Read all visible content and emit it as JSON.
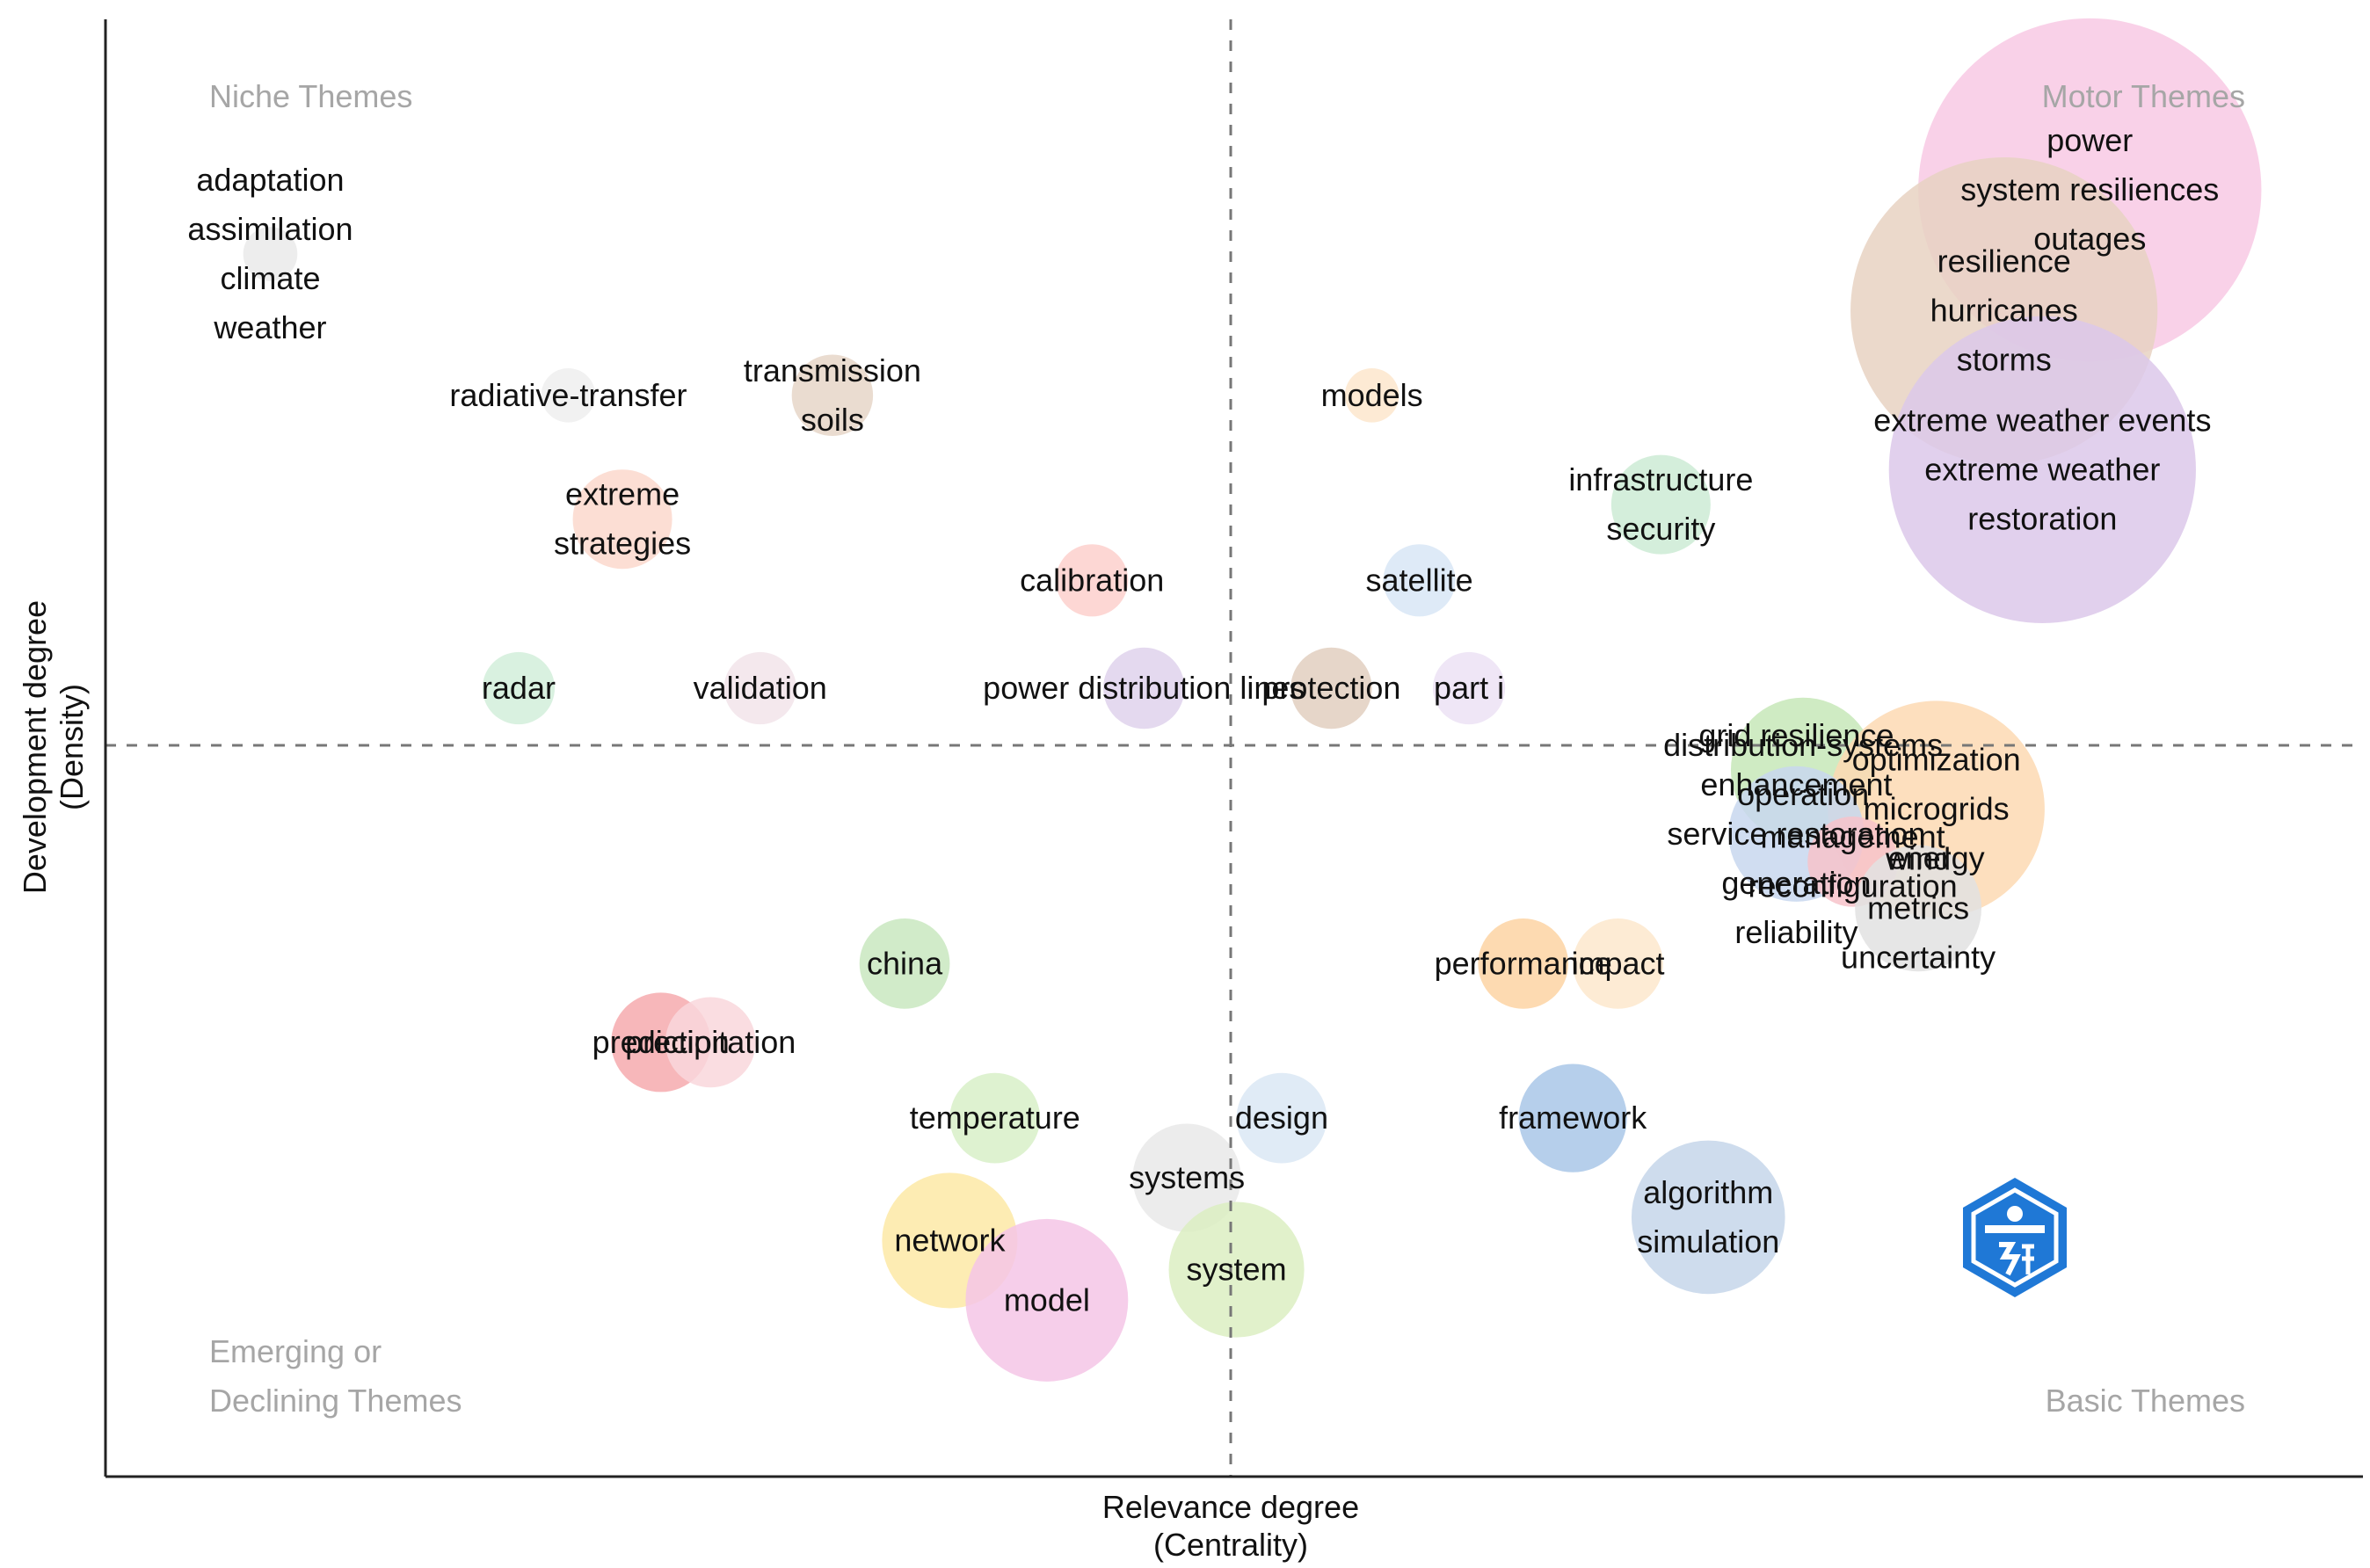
{
  "chart_data": {
    "type": "scatter",
    "title": "",
    "xlabel": [
      "Relevance degree",
      "(Centrality)"
    ],
    "ylabel": [
      "Development degree",
      "(Density)"
    ],
    "xlim": [
      0,
      1
    ],
    "ylim": [
      0,
      1
    ],
    "grid": false,
    "quadrants": {
      "top_left": [
        "Niche Themes"
      ],
      "top_right": [
        "Motor Themes"
      ],
      "bottom_left": [
        "Emerging or",
        "Declining Themes"
      ],
      "bottom_right": [
        "Basic Themes"
      ]
    },
    "clusters": [
      {
        "labels": [
          "power",
          "system resiliences",
          "outages"
        ],
        "x": 0.879,
        "y": 0.883,
        "size": 0.076,
        "color": "#f8c9e4"
      },
      {
        "labels": [
          "resilience",
          "hurricanes",
          "storms"
        ],
        "x": 0.841,
        "y": 0.8,
        "size": 0.068,
        "color": "#e8d2c2"
      },
      {
        "labels": [
          "extreme weather events",
          "extreme weather",
          "restoration"
        ],
        "x": 0.858,
        "y": 0.691,
        "size": 0.068,
        "color": "#dcc8ea"
      },
      {
        "labels": [
          "adaptation",
          "assimilation",
          "climate",
          "weather"
        ],
        "x": 0.073,
        "y": 0.839,
        "size": 0.012,
        "color": "#eaeaea"
      },
      {
        "labels": [
          "radiative-transfer"
        ],
        "x": 0.205,
        "y": 0.742,
        "size": 0.012,
        "color": "#efefef"
      },
      {
        "labels": [
          "transmission",
          "soils"
        ],
        "x": 0.322,
        "y": 0.742,
        "size": 0.018,
        "color": "#e6d6c8"
      },
      {
        "labels": [
          "models"
        ],
        "x": 0.561,
        "y": 0.742,
        "size": 0.012,
        "color": "#fde6cc"
      },
      {
        "labels": [
          "infrastructure",
          "security"
        ],
        "x": 0.689,
        "y": 0.667,
        "size": 0.022,
        "color": "#cdebd5"
      },
      {
        "labels": [
          "extreme",
          "strategies"
        ],
        "x": 0.229,
        "y": 0.657,
        "size": 0.022,
        "color": "#fcd8cc"
      },
      {
        "labels": [
          "calibration"
        ],
        "x": 0.437,
        "y": 0.615,
        "size": 0.016,
        "color": "#fdd0cc"
      },
      {
        "labels": [
          "satellite"
        ],
        "x": 0.582,
        "y": 0.615,
        "size": 0.016,
        "color": "#d8e6f6"
      },
      {
        "labels": [
          "radar"
        ],
        "x": 0.183,
        "y": 0.541,
        "size": 0.016,
        "color": "#d2eedb"
      },
      {
        "labels": [
          "validation"
        ],
        "x": 0.29,
        "y": 0.541,
        "size": 0.016,
        "color": "#f2e4ea"
      },
      {
        "labels": [
          "power distribution lines"
        ],
        "x": 0.46,
        "y": 0.541,
        "size": 0.018,
        "color": "#dfd2ec"
      },
      {
        "labels": [
          "protection"
        ],
        "x": 0.543,
        "y": 0.541,
        "size": 0.018,
        "color": "#e2cfc0"
      },
      {
        "labels": [
          "part i"
        ],
        "x": 0.604,
        "y": 0.541,
        "size": 0.016,
        "color": "#ece2f4"
      },
      {
        "labels": [
          "distribution-systems",
          "operation"
        ],
        "x": 0.752,
        "y": 0.485,
        "size": 0.032,
        "color": "#c7e7b8"
      },
      {
        "labels": [
          "optimization",
          "microgrids",
          "energy"
        ],
        "x": 0.811,
        "y": 0.458,
        "size": 0.048,
        "color": "#fdd9b3"
      },
      {
        "labels": [
          "grid resilience",
          "enhancement",
          "service restoration",
          "generation",
          "reliability"
        ],
        "x": 0.749,
        "y": 0.441,
        "size": 0.03,
        "color": "#c8d7ee"
      },
      {
        "labels": [
          "management",
          "reconfiguration"
        ],
        "x": 0.774,
        "y": 0.422,
        "size": 0.02,
        "color": "#f7c3ca"
      },
      {
        "labels": [
          "wind",
          "metrics",
          "uncertainty"
        ],
        "x": 0.803,
        "y": 0.39,
        "size": 0.028,
        "color": "#e2e2e2"
      },
      {
        "labels": [
          "china"
        ],
        "x": 0.354,
        "y": 0.352,
        "size": 0.02,
        "color": "#c9e8c0"
      },
      {
        "labels": [
          "performance"
        ],
        "x": 0.628,
        "y": 0.352,
        "size": 0.02,
        "color": "#fdd4a3"
      },
      {
        "labels": [
          "impact"
        ],
        "x": 0.67,
        "y": 0.352,
        "size": 0.02,
        "color": "#fde8cc"
      },
      {
        "labels": [
          "prediction"
        ],
        "x": 0.246,
        "y": 0.298,
        "size": 0.022,
        "color": "#f6aaae"
      },
      {
        "labels": [
          "precipitation"
        ],
        "x": 0.268,
        "y": 0.298,
        "size": 0.02,
        "color": "#f9d7dc"
      },
      {
        "labels": [
          "temperature"
        ],
        "x": 0.394,
        "y": 0.246,
        "size": 0.02,
        "color": "#d8f0c8"
      },
      {
        "labels": [
          "design"
        ],
        "x": 0.521,
        "y": 0.246,
        "size": 0.02,
        "color": "#dae8f4"
      },
      {
        "labels": [
          "framework"
        ],
        "x": 0.65,
        "y": 0.246,
        "size": 0.024,
        "color": "#a9c7e8"
      },
      {
        "labels": [
          "systems"
        ],
        "x": 0.479,
        "y": 0.205,
        "size": 0.024,
        "color": "#e9e9e9"
      },
      {
        "labels": [
          "algorithm",
          "simulation"
        ],
        "x": 0.71,
        "y": 0.178,
        "size": 0.034,
        "color": "#c5d6ea"
      },
      {
        "labels": [
          "network"
        ],
        "x": 0.374,
        "y": 0.162,
        "size": 0.03,
        "color": "#fde9a6"
      },
      {
        "labels": [
          "system"
        ],
        "x": 0.501,
        "y": 0.142,
        "size": 0.03,
        "color": "#dcefc2"
      },
      {
        "labels": [
          "model"
        ],
        "x": 0.417,
        "y": 0.121,
        "size": 0.036,
        "color": "#f5c6e6"
      }
    ]
  }
}
